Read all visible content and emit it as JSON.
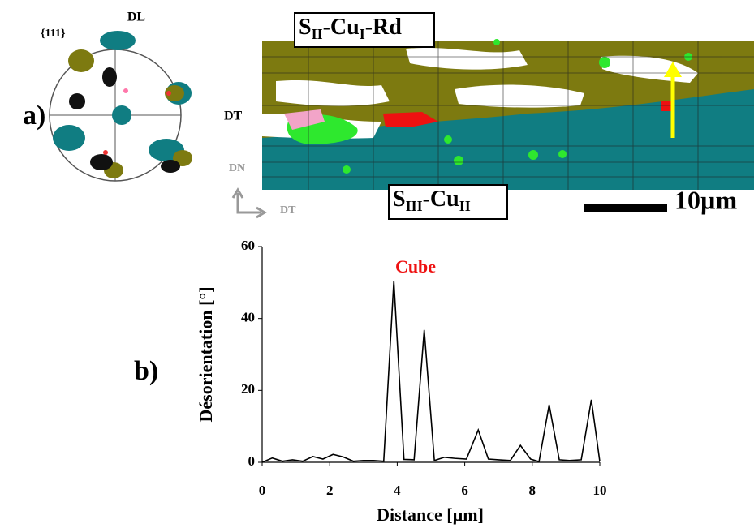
{
  "panel_a": {
    "label": "a)",
    "pole_figure": {
      "title": "{111}",
      "top": "DL",
      "right": "DT"
    },
    "axes": {
      "vertical": "DN",
      "horizontal": "DT"
    },
    "label_top": [
      "S",
      "II",
      "-Cu",
      "I",
      "-Rd"
    ],
    "label_bottom": [
      "S",
      "III",
      "-Cu",
      "II"
    ],
    "scale_bar": "10µm"
  },
  "chart_data": {
    "type": "line",
    "label": "b)",
    "xlabel": "Distance [µm]",
    "ylabel": "Désorientation [°]",
    "annotation": "Cube",
    "x": [
      0,
      0.3,
      0.6,
      0.9,
      1.2,
      1.5,
      1.8,
      2.1,
      2.4,
      2.7,
      3.0,
      3.3,
      3.6,
      3.9,
      4.2,
      4.5,
      4.8,
      5.1,
      5.4,
      5.7,
      6.05,
      6.4,
      6.7,
      7.0,
      7.35,
      7.65,
      7.95,
      8.2,
      8.5,
      8.8,
      9.1,
      9.45,
      9.75,
      10
    ],
    "series": [
      {
        "name": "Désorientation",
        "color": "#000000",
        "values": [
          0,
          1.2,
          0.3,
          0.7,
          0.3,
          1.6,
          0.9,
          2.2,
          1.5,
          0.3,
          0.5,
          0.5,
          0.3,
          50.5,
          0.8,
          0.7,
          36.8,
          0.5,
          1.4,
          1.1,
          0.9,
          9,
          0.9,
          0.7,
          0.5,
          4.7,
          0.9,
          0.2,
          16,
          0.7,
          0.5,
          0.7,
          17.4,
          0.2
        ]
      }
    ],
    "xlim": [
      0,
      10
    ],
    "ylim": [
      0,
      60
    ],
    "xticks": [
      0,
      2,
      4,
      6,
      8,
      10
    ],
    "yticks": [
      0,
      20,
      40,
      60
    ]
  }
}
